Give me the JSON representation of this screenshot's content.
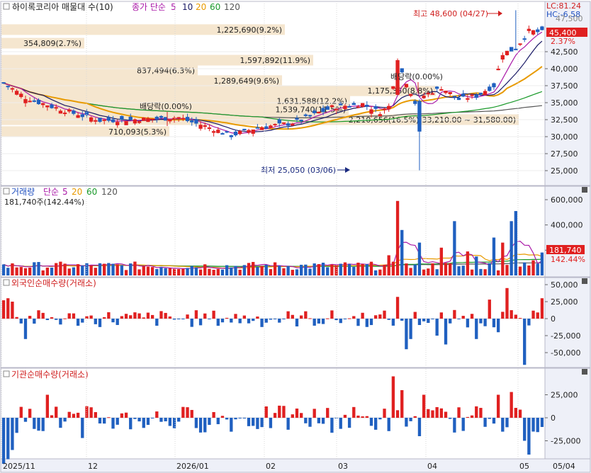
{
  "price_panel": {
    "title": "하이록코리아 매물대 수(10)",
    "ma_label": "종가 단순",
    "ma_periods": [
      "5",
      "10",
      "20",
      "60",
      "120"
    ],
    "ma_colors": [
      "#aa1aa8",
      "#1a1a66",
      "#e89a00",
      "#1a9a2a",
      "#555555"
    ],
    "lc": "LC:81.24",
    "hc": "HC:-6.58",
    "high_note": "최고 48,600 (04/27)",
    "low_note": "최저 25,050 (03/06)",
    "dividend_labels": [
      "배당락(0.00%)",
      "배당락(0.00%)"
    ],
    "current_price": "45,400",
    "current_pct": "2.37%",
    "y_ticks": [
      "42,500",
      "40,000",
      "37,500",
      "35,000",
      "32,500",
      "30,000",
      "27,500",
      "25,000"
    ],
    "y_tick_values": [
      42500,
      40000,
      37500,
      35000,
      32500,
      30000,
      27500,
      25000
    ],
    "y_top_partial": "47,500",
    "volume_profile": [
      {
        "label": "1,225,690(9.2%)",
        "price": 45750
      },
      {
        "label": "354,809(2.7%)",
        "price": 43750
      },
      {
        "label": "1,597,892(11.9%)",
        "price": 41250
      },
      {
        "label": "837,494(6.3%)",
        "price": 39750
      },
      {
        "label": "1,289,649(9.6%)",
        "price": 38250
      },
      {
        "label": "1,175,350(8.8%)",
        "price": 36750
      },
      {
        "label": "1,631,588(12.2%)",
        "price": 35250
      },
      {
        "label": "1,539,740(11.5%)",
        "price": 34000
      },
      {
        "label": "2,210,656(16.5%)(33,210.00 ~ 31,580.00)",
        "price": 32500
      },
      {
        "label": "710,093(5.3%)",
        "price": 30750
      }
    ]
  },
  "volume_panel": {
    "title": "거래량",
    "ma_label": "단순",
    "ma_periods": [
      "5",
      "20",
      "60",
      "120"
    ],
    "ma_colors": [
      "#aa1aa8",
      "#e89a00",
      "#1a9a2a",
      "#555555"
    ],
    "summary": "181,740주(142.44%)",
    "current_value": "181,740",
    "current_pct": "142.44%",
    "y_ticks": [
      "600,000",
      "400,000",
      "200,000"
    ],
    "y_tick_values": [
      600000,
      400000,
      200000
    ]
  },
  "foreign_panel": {
    "title": "외국인순매수량(거래소)",
    "y_ticks": [
      "50,000",
      "25,000",
      "0",
      "-25,000",
      "-50,000"
    ],
    "y_tick_values": [
      50000,
      25000,
      0,
      -25000,
      -50000
    ]
  },
  "inst_panel": {
    "title": "기관순매수량(거래소)",
    "y_ticks": [
      "25,000",
      "0",
      "-25,000"
    ],
    "y_tick_values": [
      25000,
      0,
      -25000
    ]
  },
  "x_axis": {
    "labels": [
      "2025/11",
      "12",
      "2026/01",
      "02",
      "03",
      "04",
      "05"
    ],
    "corner": "05/04"
  },
  "colors": {
    "up": "#e02020",
    "down": "#2060c0",
    "profile": "#f5e6cf",
    "panel_border": "#b8b8c8",
    "axis_bg": "#eef0f8"
  }
}
